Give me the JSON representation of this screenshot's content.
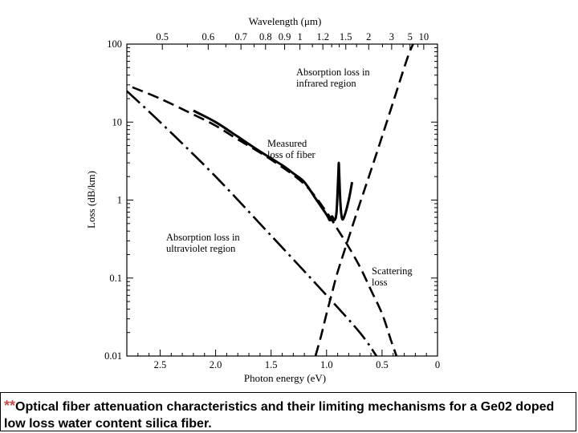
{
  "chart_data": {
    "type": "line",
    "title": "",
    "xlabel": "Photon energy (eV)",
    "x2label": "Wavelength (μm)",
    "ylabel": "Loss (dB/km)",
    "xlim": [
      2.8,
      0
    ],
    "ylim": [
      0.01,
      100
    ],
    "yscale": "log",
    "grid": false,
    "x_ticks": [
      "2.5",
      "2.0",
      "1.5",
      "1.0",
      "0.5",
      "0"
    ],
    "x2_ticks": [
      "0.5",
      "0.6",
      "0.7",
      "0.8",
      "0.9",
      "1",
      "1.2",
      "1.5",
      "2",
      "3",
      "5",
      "10"
    ],
    "y_ticks": [
      "100",
      "10",
      "1",
      "0.1",
      "0.01"
    ],
    "annotations": [
      {
        "lines": [
          "Absorption loss in",
          "infrared region"
        ]
      },
      {
        "lines": [
          "Measured",
          "loss of fiber"
        ]
      },
      {
        "lines": [
          "Absorption loss in",
          "ultraviolet region"
        ]
      },
      {
        "lines": [
          "Scattering",
          "loss"
        ]
      }
    ],
    "series": [
      {
        "style": "solid",
        "x": [
          2.2,
          2.0,
          1.8,
          1.6,
          1.4,
          1.3,
          1.2,
          1.1,
          1.0,
          0.97,
          0.95,
          0.93,
          0.91,
          0.895,
          0.89,
          0.885,
          0.875,
          0.86,
          0.84,
          0.8,
          0.77
        ],
        "y": [
          14,
          10,
          6.5,
          4.2,
          2.8,
          2.2,
          1.7,
          1.05,
          0.65,
          0.55,
          0.62,
          0.55,
          0.7,
          2.0,
          3.0,
          2.0,
          0.9,
          0.58,
          0.62,
          1.0,
          1.7
        ]
      },
      {
        "style": "dashed",
        "x": [
          2.75,
          2.5,
          2.2,
          2.0,
          1.8,
          1.5,
          1.2,
          1.0,
          0.9,
          0.8,
          0.7,
          0.6,
          0.5,
          0.42,
          0.37
        ],
        "y": [
          28,
          20,
          12.5,
          9,
          6,
          3.3,
          1.6,
          0.7,
          0.42,
          0.25,
          0.14,
          0.07,
          0.035,
          0.016,
          0.01
        ]
      },
      {
        "style": "dashed",
        "x": [
          1.1,
          1.05,
          1.0,
          0.95,
          0.9,
          0.8,
          0.7,
          0.6,
          0.5,
          0.4,
          0.3,
          0.25,
          0.22
        ],
        "y": [
          0.01,
          0.018,
          0.035,
          0.065,
          0.12,
          0.33,
          0.9,
          2.4,
          6.5,
          18,
          50,
          80,
          100
        ]
      },
      {
        "style": "dash-long",
        "x": [
          2.8,
          2.5,
          2.0,
          1.5,
          1.0,
          0.7,
          0.55
        ],
        "y": [
          25,
          10,
          2.0,
          0.35,
          0.06,
          0.02,
          0.01
        ]
      }
    ]
  },
  "caption": {
    "stars": "**",
    "text": "Optical fiber attenuation characteristics and their limiting mechanisms for a Ge02 doped low loss water content silica fiber."
  }
}
